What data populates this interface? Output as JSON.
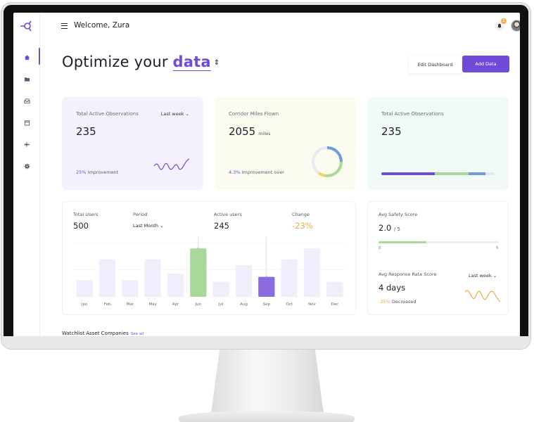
{
  "header": {
    "welcome": "Welcome, Zura",
    "notification_count": "2"
  },
  "sidebar": {
    "items": [
      {
        "icon": "home-icon"
      },
      {
        "icon": "folder-icon"
      },
      {
        "icon": "inbox-icon"
      },
      {
        "icon": "calendar-icon"
      },
      {
        "icon": "plane-icon"
      },
      {
        "icon": "gear-icon"
      }
    ]
  },
  "hero": {
    "title_prefix": "Optimize your",
    "title_accent": "data",
    "edit_button": "Edit Dashboard",
    "add_button": "Add Data"
  },
  "stats": [
    {
      "label": "Total Active Observations",
      "period": "Last week",
      "value": "235",
      "foot_pct": "25%",
      "foot_text": "Improvement"
    },
    {
      "label": "Corridor Miles Flown",
      "value": "2055",
      "unit": "miles",
      "foot_pct": "4.3%",
      "foot_text": "Improvement over"
    },
    {
      "label": "Total Active Observations",
      "value": "235"
    }
  ],
  "users_panel": {
    "total_users_label": "Total Users",
    "total_users_value": "500",
    "period_label": "Period",
    "period_value": "Last Month",
    "active_users_label": "Active users",
    "active_users_value": "245",
    "change_label": "Change",
    "change_value": "-23%"
  },
  "chart_data": {
    "type": "bar",
    "categories": [
      "Jan",
      "Feb",
      "Mar",
      "May",
      "Apr",
      "Jun",
      "Jul",
      "Aug",
      "Sep",
      "Oct",
      "Nov",
      "Dec"
    ],
    "values": [
      20,
      45,
      20,
      45,
      28,
      58,
      18,
      38,
      24,
      45,
      58,
      18
    ],
    "highlight": {
      "Jun": "#a8d89a",
      "Sep": "#8a6be0"
    },
    "bar_color": "#f1edfb",
    "ylim": [
      0,
      65
    ]
  },
  "side_panel": {
    "safety_label": "Avg Safety Score",
    "safety_value": "2.0",
    "safety_denom": "/ 5",
    "safety_fraction": 0.4,
    "scale_min": "0",
    "scale_max": "5",
    "response_label": "Avg Response Rate Score",
    "response_period": "Last week",
    "response_value": "4 days",
    "response_change": "-25%",
    "response_text": "Decreased"
  },
  "watchlist": {
    "title": "Watchlist Asset Companies",
    "see_all": "See all"
  },
  "colors": {
    "accent": "#6f4bd8",
    "green": "#a8d89a",
    "blue": "#6f9ae0",
    "orange": "#e9a94a"
  }
}
